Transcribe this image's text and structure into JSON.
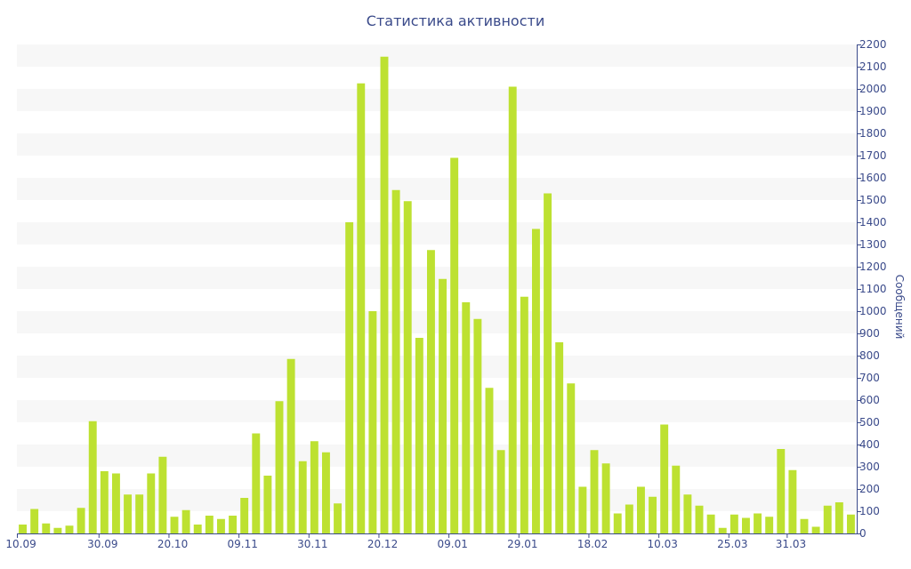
{
  "chart_data": {
    "type": "bar",
    "title": "Статистика активности",
    "xlabel": "",
    "ylabel": "Сообщений",
    "ylim": [
      0,
      2200
    ],
    "y_ticks": [
      0,
      100,
      200,
      300,
      400,
      500,
      600,
      700,
      800,
      900,
      1000,
      1100,
      1200,
      1300,
      1400,
      1500,
      1600,
      1700,
      1800,
      1900,
      2000,
      2100,
      2200
    ],
    "x_tick_labels": [
      {
        "index": 0,
        "label": "10.09"
      },
      {
        "index": 7,
        "label": "30.09"
      },
      {
        "index": 13,
        "label": "20.10"
      },
      {
        "index": 19,
        "label": "09.11"
      },
      {
        "index": 25,
        "label": "30.11"
      },
      {
        "index": 31,
        "label": "20.12"
      },
      {
        "index": 37,
        "label": "09.01"
      },
      {
        "index": 43,
        "label": "29.01"
      },
      {
        "index": 49,
        "label": "18.02"
      },
      {
        "index": 55,
        "label": "10.03"
      },
      {
        "index": 61,
        "label": "25.03"
      },
      {
        "index": 66,
        "label": "31.03"
      }
    ],
    "values": [
      40,
      110,
      45,
      25,
      35,
      115,
      505,
      280,
      270,
      175,
      175,
      270,
      345,
      75,
      105,
      40,
      80,
      65,
      80,
      160,
      450,
      260,
      595,
      785,
      325,
      415,
      365,
      135,
      1400,
      2025,
      1000,
      2145,
      1545,
      1495,
      880,
      1275,
      1145,
      1690,
      1040,
      965,
      655,
      375,
      2010,
      1065,
      1370,
      1530,
      860,
      675,
      210,
      375,
      315,
      90,
      130,
      210,
      165,
      490,
      305,
      175,
      125,
      85,
      25,
      85,
      70,
      90,
      75,
      380,
      285,
      65,
      30,
      125,
      140,
      85
    ],
    "bar_color": "#bde131",
    "stripe_color": "#f7f7f7",
    "axis_color": "#3a4a8a",
    "grid": "alternating horizontal bands",
    "y_axis_position": "right"
  }
}
